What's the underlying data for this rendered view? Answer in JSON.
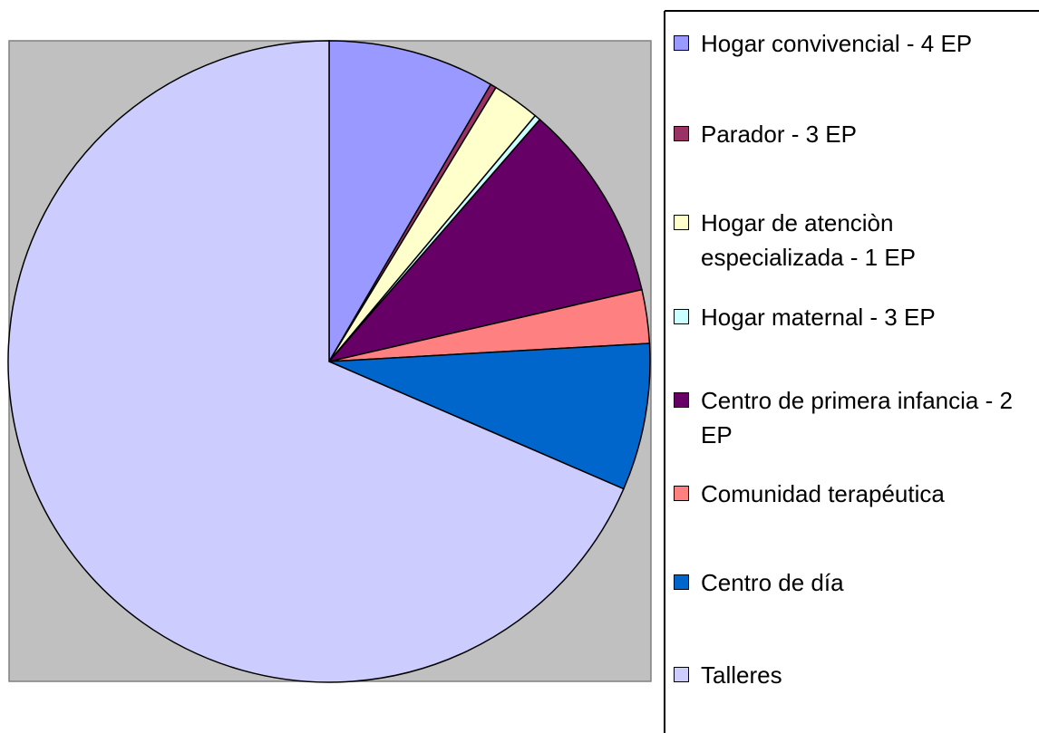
{
  "chart_data": {
    "type": "pie",
    "categories": [
      "Hogar convivencial - 4 EP",
      "Parador - 3 EP",
      "Hogar de atenciòn especializada - 1 EP",
      "Hogar maternal - 3 EP",
      "Centro de primera infancia - 2 EP",
      "Comunidad terapéutica",
      "Centro de día",
      "Talleres"
    ],
    "values": [
      8.4,
      0.3,
      2.4,
      0.3,
      10,
      2.7,
      7.4,
      68.5
    ],
    "colors": [
      "#9999ff",
      "#993366",
      "#ffffcc",
      "#ccffff",
      "#660066",
      "#ff8080",
      "#0066cc",
      "#ccccff"
    ],
    "legend": "right"
  }
}
